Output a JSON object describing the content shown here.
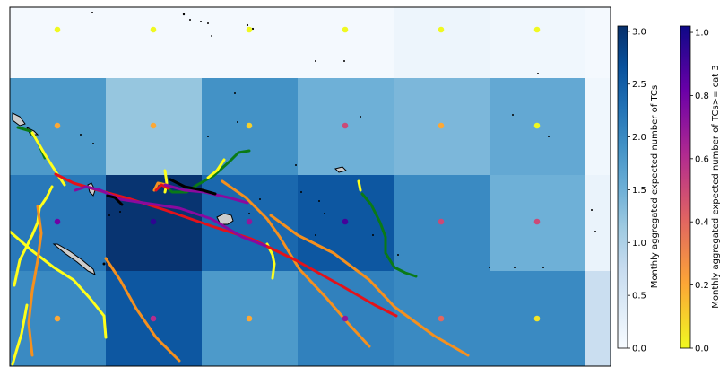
{
  "chart_data": {
    "type": "heatmap",
    "title": "",
    "grid_cols": 6,
    "grid_rows": 4,
    "cell_values": [
      [
        0.05,
        0.05,
        0.05,
        0.05,
        0.15,
        0.1
      ],
      [
        1.8,
        1.2,
        1.9,
        1.5,
        1.4,
        1.6
      ],
      [
        2.2,
        3.0,
        2.4,
        2.6,
        2.0,
        1.5
      ],
      [
        2.0,
        2.6,
        1.8,
        2.1,
        2.0,
        2.0
      ]
    ],
    "edge_column_values": [
      0.05,
      0.1,
      0.2,
      0.7
    ],
    "point_values": [
      [
        0.0,
        0.0,
        0.0,
        0.0,
        0.0,
        0.0
      ],
      [
        0.2,
        0.2,
        0.1,
        0.5,
        0.2,
        0.0
      ],
      [
        0.8,
        0.95,
        0.7,
        0.9,
        0.5,
        0.5
      ],
      [
        0.2,
        0.6,
        0.2,
        0.7,
        0.4,
        0.05
      ]
    ],
    "colorbar_tc": {
      "label": "Monthly aggregated expected number of TCs",
      "range": [
        0.0,
        3.05
      ],
      "ticks": [
        "0.0",
        "0.5",
        "1.0",
        "1.5",
        "2.0",
        "2.5",
        "3.0"
      ],
      "tick_values": [
        0,
        0.5,
        1,
        1.5,
        2,
        2.5,
        3
      ]
    },
    "colorbar_cat3": {
      "label": "Monthly aggregated expected number of TCs>= cat 3",
      "range": [
        0.0,
        1.02
      ],
      "ticks": [
        "0.0",
        "0.2",
        "0.4",
        "0.6",
        "0.8",
        "1.0"
      ],
      "tick_values": [
        0,
        0.2,
        0.4,
        0.6,
        0.8,
        1.0
      ]
    },
    "track_colors": {
      "yellow": "#ffff1a",
      "orange": "#f5901e",
      "red": "#e3121a",
      "purple": "#8a0a9e",
      "green": "#0a7a17",
      "black": "#000000"
    }
  }
}
